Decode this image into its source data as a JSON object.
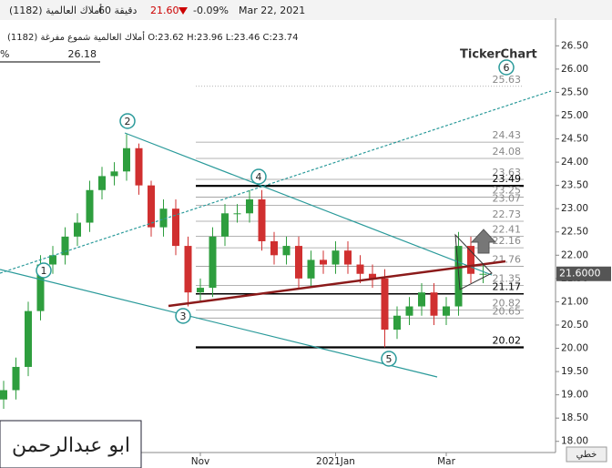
{
  "header": {
    "date": "Mar 22, 2021",
    "change": "-0.09%",
    "price": "21.60",
    "interval": "60 دقيقة",
    "symbol": "أملاك العالمية (1182)",
    "ohlc_line": "أملاك العالمية شموع مفرغة (1182) O:23.62 H:23.96 L:23.46 C:23.74",
    "info_symbol": "%",
    "info_value": "26.18",
    "watermark": "TickerChart",
    "author": "ابو عبدالرحمن",
    "chart_style": "خطي"
  },
  "chart_data": {
    "type": "candlestick",
    "categories": [
      null,
      null,
      null,
      null,
      null,
      null,
      null,
      null,
      null,
      null,
      null,
      null,
      null,
      null,
      null,
      null,
      "Nov",
      null,
      null,
      null,
      null,
      null,
      null,
      null,
      null,
      null,
      null,
      "2021Jan",
      null,
      null,
      null,
      null,
      null,
      null,
      null,
      null,
      "Mar",
      null,
      null,
      null
    ],
    "open": [
      18.9,
      19.1,
      19.6,
      20.8,
      21.8,
      22.0,
      22.4,
      22.7,
      23.4,
      23.7,
      23.8,
      24.3,
      23.5,
      22.6,
      23.0,
      22.2,
      21.2,
      21.3,
      22.4,
      22.9,
      22.9,
      23.2,
      22.3,
      22.0,
      22.2,
      21.5,
      21.9,
      21.8,
      22.1,
      21.8,
      21.6,
      21.5,
      20.4,
      20.7,
      20.9,
      21.2,
      20.7,
      20.9,
      22.2,
      21.6
    ],
    "high": [
      19.3,
      19.8,
      21.0,
      22.0,
      22.2,
      22.6,
      22.9,
      23.6,
      23.9,
      24.0,
      24.6,
      24.4,
      23.6,
      23.2,
      23.2,
      22.4,
      21.5,
      22.6,
      23.1,
      23.1,
      23.4,
      23.4,
      22.5,
      22.4,
      22.4,
      22.1,
      22.1,
      22.3,
      22.3,
      22.0,
      21.8,
      21.7,
      20.9,
      21.1,
      21.4,
      21.4,
      21.1,
      22.5,
      22.4,
      21.8
    ],
    "low": [
      18.7,
      18.9,
      19.4,
      20.6,
      21.6,
      21.8,
      22.2,
      22.5,
      23.2,
      23.5,
      23.6,
      23.3,
      22.4,
      22.4,
      22.0,
      20.9,
      21.0,
      21.1,
      22.2,
      22.7,
      22.7,
      22.1,
      21.8,
      21.8,
      21.3,
      21.3,
      21.6,
      21.6,
      21.6,
      21.4,
      21.3,
      20.02,
      20.2,
      20.5,
      20.7,
      20.5,
      20.5,
      20.7,
      21.4,
      21.4
    ],
    "close": [
      19.1,
      19.6,
      20.8,
      21.8,
      22.0,
      22.4,
      22.7,
      23.4,
      23.7,
      23.8,
      24.3,
      23.5,
      22.6,
      23.0,
      22.2,
      21.2,
      21.3,
      22.4,
      22.9,
      22.9,
      23.2,
      22.3,
      22.0,
      22.2,
      21.5,
      21.9,
      21.8,
      22.1,
      21.8,
      21.6,
      21.5,
      20.4,
      20.7,
      20.9,
      21.2,
      20.7,
      20.9,
      22.2,
      21.6,
      21.6
    ],
    "up_color": "#2e9e3e",
    "down_color": "#d03030",
    "ylim": [
      17.76,
      26.78
    ],
    "yticks": [
      {
        "value": 18,
        "label": "18.00"
      },
      {
        "value": 18.5,
        "label": "18.50"
      },
      {
        "value": 19,
        "label": "19.00"
      },
      {
        "value": 19.5,
        "label": "19.50"
      },
      {
        "value": 20,
        "label": "20.00"
      },
      {
        "value": 20.5,
        "label": "20.50"
      },
      {
        "value": 21,
        "label": "21.00"
      },
      {
        "value": 21.5,
        "label": "21.50"
      },
      {
        "value": 22,
        "label": "22.00"
      },
      {
        "value": 22.5,
        "label": "22.50"
      },
      {
        "value": 23,
        "label": "23.00"
      },
      {
        "value": 23.5,
        "label": "23.50"
      },
      {
        "value": 24,
        "label": "24.00"
      },
      {
        "value": 24.5,
        "label": "24.50"
      },
      {
        "value": 25,
        "label": "25.00"
      },
      {
        "value": 25.5,
        "label": "25.50"
      },
      {
        "value": 26,
        "label": "26.00"
      },
      {
        "value": 26.5,
        "label": "26.50"
      }
    ],
    "levels": [
      25.63,
      24.43,
      24.08,
      23.63,
      23.49,
      23.25,
      23.07,
      22.73,
      22.41,
      22.16,
      21.76,
      21.35,
      21.17,
      20.82,
      20.65,
      20.02
    ],
    "level_styles": [
      "dotted",
      "thin",
      "thin",
      "thin",
      "thick",
      "thin",
      "thin",
      "thin",
      "thin",
      "thin",
      "thin",
      "thin",
      "medium",
      "thin",
      "thin",
      "thick"
    ],
    "wave_labels": [
      "1",
      "2",
      "3",
      "4",
      "5",
      "6"
    ],
    "last_price": 21.6,
    "last_price_label": "21.6000"
  }
}
